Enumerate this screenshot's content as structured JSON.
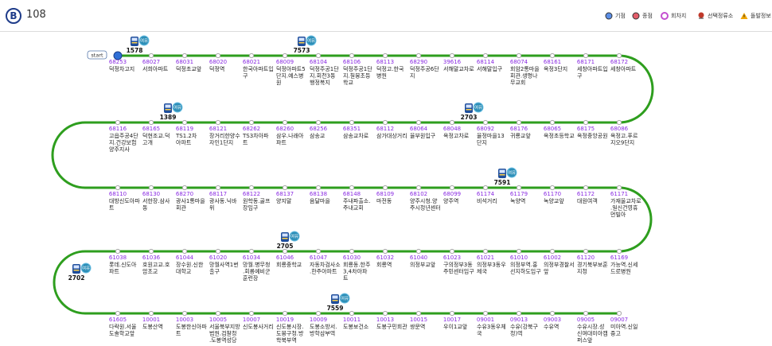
{
  "header": {
    "logo_letter": "B",
    "route_number": "108",
    "legend": [
      {
        "label": "기점",
        "icon": "origin-icon",
        "color": "#5b8ee6"
      },
      {
        "label": "종점",
        "icon": "terminus-icon",
        "color": "#e35d6a"
      },
      {
        "label": "회차지",
        "icon": "turnaround-icon",
        "color": "#c44fd0"
      },
      {
        "label": "선택정류소",
        "icon": "selected-stop-icon",
        "color": "#c0392b"
      },
      {
        "label": "돌발정보",
        "icon": "alert-icon",
        "color": "#f0a500"
      }
    ]
  },
  "map": {
    "line_color": "#2e9e1e",
    "start_label": "start",
    "stops": [
      {
        "id": "68253",
        "name": "덕정차고지"
      },
      {
        "id": "68027",
        "name": "서희아파트"
      },
      {
        "id": "68031",
        "name": "덕정초교앞"
      },
      {
        "id": "68020",
        "name": "덕정역"
      },
      {
        "id": "68021",
        "name": "한국아파트입구"
      },
      {
        "id": "68009",
        "name": "덕정아파트5단지.예스병원"
      },
      {
        "id": "68104",
        "name": "덕정주공1단지.회천3동행정복지"
      },
      {
        "id": "68106",
        "name": "덕정주공1단지.칠봉초등학교"
      },
      {
        "id": "68113",
        "name": "덕정고.한국병원"
      },
      {
        "id": "68290",
        "name": "덕정주공6단지"
      },
      {
        "id": "39616",
        "name": "서해말교차로"
      },
      {
        "id": "68114",
        "name": "서해말입구"
      },
      {
        "id": "68074",
        "name": "회암2통마을회관.생명나무교회"
      },
      {
        "id": "68161",
        "name": "옥정3단지"
      },
      {
        "id": "68171",
        "name": "세창아파트입구"
      },
      {
        "id": "68172",
        "name": "세창아파트"
      },
      {
        "id": "68086",
        "name": "옥정고.푸르지오9단지"
      },
      {
        "id": "68175",
        "name": "옥정중앙공원"
      },
      {
        "id": "68065",
        "name": "옥정초등학교"
      },
      {
        "id": "68176",
        "name": "귀룡교앞"
      },
      {
        "id": "68092",
        "name": "율정마을13단지"
      },
      {
        "id": "68048",
        "name": "옥정고차로"
      },
      {
        "id": "68064",
        "name": "율부원입구"
      },
      {
        "id": "68112",
        "name": "삼가대상거리"
      },
      {
        "id": "68351",
        "name": "삼송교차로"
      },
      {
        "id": "68256",
        "name": "삼송교"
      },
      {
        "id": "68260",
        "name": "삼우.나래아파트"
      },
      {
        "id": "68262",
        "name": "TS3차아파트"
      },
      {
        "id": "68121",
        "name": "장거리한양수자인1단지"
      },
      {
        "id": "68119",
        "name": "TS1.2차아파트"
      },
      {
        "id": "68165",
        "name": "덕현조교.덕고개"
      },
      {
        "id": "68116",
        "name": "고읍주공4단지.건강보험양주지사"
      },
      {
        "id": "68110",
        "name": "대방신도아파트"
      },
      {
        "id": "68130",
        "name": "서한장.삼사동"
      },
      {
        "id": "68270",
        "name": "광사1통마을회관"
      },
      {
        "id": "68117",
        "name": "광사동.닉바위"
      },
      {
        "id": "68122",
        "name": "원학동.골프장입구"
      },
      {
        "id": "68137",
        "name": "양지말"
      },
      {
        "id": "68138",
        "name": "음달마을"
      },
      {
        "id": "68148",
        "name": "주내파출소.주내교회"
      },
      {
        "id": "68109",
        "name": "마전동"
      },
      {
        "id": "68102",
        "name": "양주시청.양주시청년센터"
      },
      {
        "id": "68099",
        "name": "양주역"
      },
      {
        "id": "61174",
        "name": "비석거리"
      },
      {
        "id": "61179",
        "name": "녹양역"
      },
      {
        "id": "61170",
        "name": "녹양교앞"
      },
      {
        "id": "61172",
        "name": "대원여객"
      },
      {
        "id": "61171",
        "name": "가재울교차로.일신건영휴먼빌아"
      },
      {
        "id": "61169",
        "name": "가능역.신세드로병원"
      },
      {
        "id": "61120",
        "name": "경기북부보훈지청"
      },
      {
        "id": "61002",
        "name": "의정부경찰서앞"
      },
      {
        "id": "61010",
        "name": "의정부역.홍선지하도입구"
      },
      {
        "id": "61021",
        "name": "의정부3동우체국"
      },
      {
        "id": "61023",
        "name": "구의정부3동주민센터입구"
      },
      {
        "id": "61040",
        "name": "의정부교앞"
      },
      {
        "id": "61032",
        "name": "회룡역"
      },
      {
        "id": "61030",
        "name": "회룡동.한주3,4차아파트"
      },
      {
        "id": "61047",
        "name": "자동차검사소.한주아파트"
      },
      {
        "id": "61046",
        "name": "회룡중학교"
      },
      {
        "id": "61034",
        "name": "망월.병무청.회룡예비군훈련장"
      },
      {
        "id": "61020",
        "name": "망월사역1번출구"
      },
      {
        "id": "61044",
        "name": "장수원.신한대학교"
      },
      {
        "id": "61036",
        "name": "호원고교.호암초교"
      },
      {
        "id": "61038",
        "name": "롯데.신도아파트"
      },
      {
        "id": "61605",
        "name": "다락원.서울도솔학교앞"
      },
      {
        "id": "10001",
        "name": "도봉산역"
      },
      {
        "id": "10003",
        "name": "도봉한신아파트"
      },
      {
        "id": "10005",
        "name": "서울북부지방법원.검찰청.도봉역성당"
      },
      {
        "id": "10007",
        "name": "신도봉사거리"
      },
      {
        "id": "10019",
        "name": "신도봉시장.도봉구청.방학북부역"
      },
      {
        "id": "10009",
        "name": "도봉소방서.방학삼부역"
      },
      {
        "id": "10011",
        "name": "도봉보건소"
      },
      {
        "id": "10013",
        "name": "도봉구민회관"
      },
      {
        "id": "10015",
        "name": "쌍문역"
      },
      {
        "id": "10017",
        "name": "우이1교앞"
      },
      {
        "id": "09001",
        "name": "수유3동우체국"
      },
      {
        "id": "09013",
        "name": "수유(강북구청)역"
      },
      {
        "id": "09003",
        "name": "수유역"
      },
      {
        "id": "09005",
        "name": "수유시장.성신여대미아캠퍼스앞"
      },
      {
        "id": "09007",
        "name": "미아역.신일중고"
      }
    ],
    "buses": [
      {
        "number": "1578",
        "badge": "여유",
        "row": 0,
        "slot": 0.5
      },
      {
        "number": "7573",
        "badge": "여유",
        "row": 0,
        "slot": 5.5
      },
      {
        "number": "1389",
        "badge": "여유",
        "row": 1,
        "slot": 13.5
      },
      {
        "number": "2703",
        "badge": "여유",
        "row": 1,
        "slot": 4.5
      },
      {
        "number": "7591",
        "badge": "여유",
        "row": 2,
        "slot": 11.5
      },
      {
        "number": "2705",
        "badge": "여유",
        "row": 3,
        "slot": 10.0
      },
      {
        "number": "2702",
        "badge": "여유",
        "row": "left-curve",
        "slot": 0
      },
      {
        "number": "7559",
        "badge": "여유",
        "row": 4,
        "slot": 6.5
      }
    ]
  }
}
